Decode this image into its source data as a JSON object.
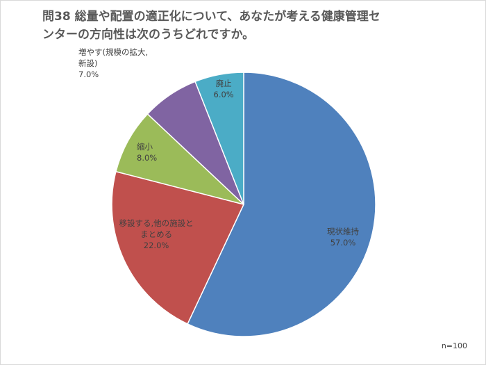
{
  "title_lines": [
    "問38  総量や配置の適正化について、あなたが考える健康管理セ",
    "ンターの方向性は次のうちどれですか。"
  ],
  "note": "n=100",
  "chart_data": {
    "type": "pie",
    "title": "問38  総量や配置の適正化について、あなたが考える健康管理センターの方向性は次のうちどれですか。",
    "start": "12 o'clock, clockwise",
    "slices": [
      {
        "label_lines": [
          "現状維持"
        ],
        "value": 57.0,
        "value_label": "57.0%",
        "color": "#4f81bd"
      },
      {
        "label_lines": [
          "移設する,他の施設と",
          "まとめる"
        ],
        "value": 22.0,
        "value_label": "22.0%",
        "color": "#c0504d"
      },
      {
        "label_lines": [
          "縮小"
        ],
        "value": 8.0,
        "value_label": "8.0%",
        "color": "#9bbb59"
      },
      {
        "label_lines": [
          "増やす(規模の拡大,",
          "新設)"
        ],
        "value": 7.0,
        "value_label": "7.0%",
        "color": "#8064a2"
      },
      {
        "label_lines": [
          "廃止"
        ],
        "value": 6.0,
        "value_label": "6.0%",
        "color": "#4bacc6"
      }
    ]
  }
}
